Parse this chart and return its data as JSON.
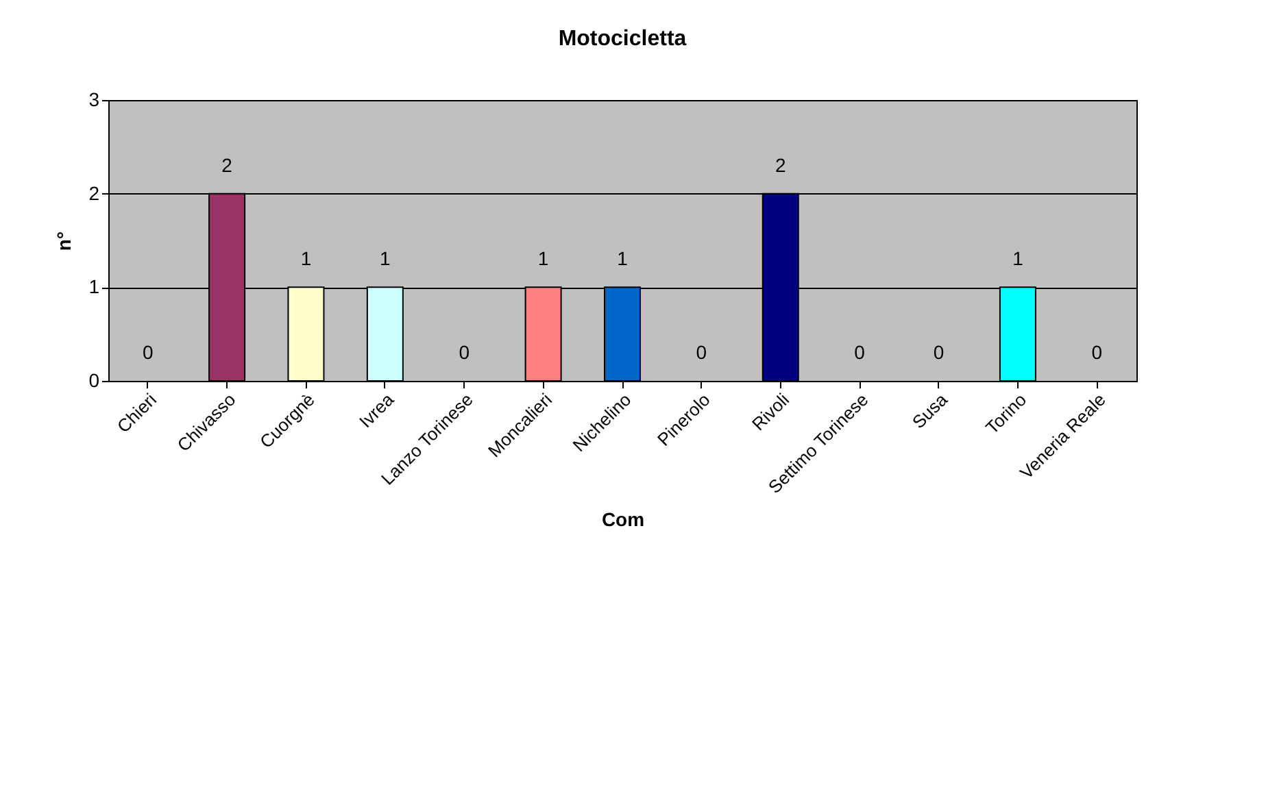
{
  "chart_data": {
    "type": "bar",
    "title": "Motocicletta",
    "xlabel": "Com",
    "ylabel": "n°",
    "categories": [
      "Chieri",
      "Chivasso",
      "Cuorgnè",
      "Ivrea",
      "Lanzo Torinese",
      "Moncalieri",
      "Nichelino",
      "Pinerolo",
      "Rivoli",
      "Settimo Torinese",
      "Susa",
      "Torino",
      "Veneria Reale"
    ],
    "values": [
      0,
      2,
      1,
      1,
      0,
      1,
      1,
      0,
      2,
      0,
      0,
      1,
      0
    ],
    "colors": [
      null,
      "#993366",
      "#ffffcc",
      "#ccffff",
      null,
      "#ff8080",
      "#0066cc",
      null,
      "#000080",
      null,
      null,
      "#00ffff",
      null
    ],
    "ylim": [
      0,
      3
    ],
    "yticks": [
      0,
      1,
      2,
      3
    ],
    "grid": "y",
    "data_labels": true
  }
}
